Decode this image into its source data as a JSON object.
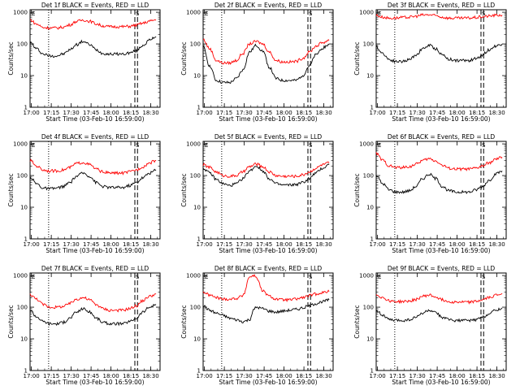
{
  "shared": {
    "ylabel": "Counts/sec",
    "xlabel": "Start Time (03-Feb-10 16:59:00)",
    "x_ticks": [
      "17:00",
      "17:15",
      "17:30",
      "17:45",
      "18:00",
      "18:15",
      "18:30"
    ],
    "y_ticks": [
      "1",
      "10",
      "100",
      "1000"
    ],
    "y_scale": "log",
    "ylim": [
      1,
      1200
    ],
    "marker_E": "E",
    "marker_S": "S",
    "colors": {
      "events": "#000000",
      "lld": "#ff0000"
    }
  },
  "chart_data": [
    {
      "type": "line",
      "title": "Det 1f BLACK = Events, RED = LLD",
      "x": [
        0,
        5,
        10,
        15,
        20,
        25,
        30,
        35,
        40,
        45,
        50,
        55,
        60,
        65,
        70,
        75,
        80,
        85,
        90,
        95
      ],
      "series": [
        {
          "color": "#000000",
          "values": [
            110,
            70,
            48,
            42,
            42,
            48,
            65,
            95,
            120,
            95,
            65,
            50,
            48,
            48,
            48,
            52,
            60,
            90,
            130,
            170
          ]
        },
        {
          "color": "#ff0000",
          "values": [
            580,
            420,
            330,
            320,
            320,
            340,
            400,
            510,
            570,
            520,
            430,
            370,
            350,
            350,
            350,
            360,
            390,
            450,
            520,
            580
          ]
        }
      ]
    },
    {
      "type": "line",
      "title": "Det 2f BLACK = Events, RED = LLD",
      "x": [
        0,
        5,
        10,
        15,
        20,
        25,
        30,
        35,
        40,
        45,
        50,
        55,
        60,
        65,
        70,
        75,
        80,
        85,
        90,
        95
      ],
      "series": [
        {
          "color": "#000000",
          "values": [
            80,
            20,
            7,
            6,
            6,
            8,
            15,
            55,
            90,
            60,
            18,
            8,
            7,
            7,
            7,
            10,
            20,
            45,
            75,
            95
          ]
        },
        {
          "color": "#ff0000",
          "values": [
            140,
            70,
            30,
            25,
            25,
            30,
            50,
            100,
            120,
            100,
            55,
            30,
            27,
            27,
            28,
            35,
            55,
            85,
            110,
            130
          ]
        }
      ]
    },
    {
      "type": "line",
      "title": "Det 3f BLACK = Events, RED = LLD",
      "x": [
        0,
        5,
        10,
        15,
        20,
        25,
        30,
        35,
        40,
        45,
        50,
        55,
        60,
        65,
        70,
        75,
        80,
        85,
        90,
        95
      ],
      "series": [
        {
          "color": "#000000",
          "values": [
            80,
            50,
            32,
            28,
            28,
            32,
            45,
            70,
            90,
            70,
            45,
            33,
            30,
            30,
            30,
            34,
            45,
            65,
            85,
            100
          ]
        },
        {
          "color": "#ff0000",
          "values": [
            800,
            700,
            650,
            660,
            680,
            700,
            750,
            820,
            830,
            780,
            700,
            650,
            650,
            650,
            660,
            680,
            720,
            760,
            800,
            820
          ]
        }
      ]
    },
    {
      "type": "line",
      "title": "Det 4f BLACK = Events, RED = LLD",
      "x": [
        0,
        5,
        10,
        15,
        20,
        25,
        30,
        35,
        40,
        45,
        50,
        55,
        60,
        65,
        70,
        75,
        80,
        85,
        90,
        95
      ],
      "series": [
        {
          "color": "#000000",
          "values": [
            90,
            55,
            40,
            38,
            40,
            45,
            60,
            95,
            120,
            95,
            60,
            45,
            42,
            42,
            42,
            48,
            60,
            85,
            120,
            150
          ]
        },
        {
          "color": "#ff0000",
          "values": [
            300,
            200,
            150,
            140,
            140,
            150,
            180,
            240,
            260,
            220,
            160,
            130,
            120,
            120,
            120,
            130,
            150,
            190,
            250,
            300
          ]
        }
      ]
    },
    {
      "type": "line",
      "title": "Det 5f BLACK = Events, RED = LLD",
      "x": [
        0,
        5,
        10,
        15,
        20,
        25,
        30,
        35,
        40,
        45,
        50,
        55,
        60,
        65,
        70,
        75,
        80,
        85,
        90,
        95
      ],
      "series": [
        {
          "color": "#000000",
          "values": [
            170,
            120,
            75,
            55,
            48,
            55,
            80,
            140,
            200,
            140,
            80,
            55,
            50,
            50,
            52,
            60,
            80,
            120,
            170,
            220
          ]
        },
        {
          "color": "#ff0000",
          "values": [
            220,
            180,
            130,
            100,
            95,
            100,
            130,
            190,
            230,
            190,
            130,
            100,
            95,
            95,
            95,
            105,
            130,
            170,
            220,
            250
          ]
        }
      ]
    },
    {
      "type": "line",
      "title": "Det 6f BLACK = Events, RED = LLD",
      "x": [
        0,
        5,
        10,
        15,
        20,
        25,
        30,
        35,
        40,
        45,
        50,
        55,
        60,
        65,
        70,
        75,
        80,
        85,
        90,
        95
      ],
      "series": [
        {
          "color": "#000000",
          "values": [
            100,
            55,
            35,
            30,
            30,
            33,
            45,
            80,
            110,
            80,
            45,
            33,
            30,
            30,
            30,
            35,
            45,
            70,
            110,
            140
          ]
        },
        {
          "color": "#ff0000",
          "values": [
            500,
            300,
            200,
            180,
            180,
            190,
            230,
            300,
            340,
            290,
            210,
            170,
            160,
            160,
            160,
            170,
            200,
            250,
            320,
            380
          ]
        }
      ]
    },
    {
      "type": "line",
      "title": "Det 7f BLACK = Events, RED = LLD",
      "x": [
        0,
        5,
        10,
        15,
        20,
        25,
        30,
        35,
        40,
        45,
        50,
        55,
        60,
        65,
        70,
        75,
        80,
        85,
        90,
        95
      ],
      "series": [
        {
          "color": "#000000",
          "values": [
            80,
            50,
            35,
            30,
            30,
            33,
            45,
            70,
            90,
            70,
            45,
            33,
            30,
            30,
            30,
            35,
            45,
            70,
            100,
            120
          ]
        },
        {
          "color": "#ff0000",
          "values": [
            250,
            180,
            120,
            100,
            100,
            105,
            130,
            180,
            200,
            170,
            120,
            90,
            80,
            80,
            80,
            90,
            110,
            160,
            220,
            260
          ]
        }
      ]
    },
    {
      "type": "line",
      "title": "Det 8f BLACK = Events, RED = LLD",
      "x": [
        0,
        5,
        10,
        15,
        20,
        25,
        30,
        35,
        38,
        40,
        45,
        50,
        55,
        60,
        65,
        70,
        75,
        80,
        85,
        90,
        95
      ],
      "series": [
        {
          "color": "#000000",
          "values": [
            110,
            80,
            65,
            55,
            45,
            40,
            35,
            40,
            80,
            100,
            90,
            75,
            70,
            75,
            80,
            85,
            95,
            110,
            130,
            150,
            170
          ]
        },
        {
          "color": "#ff0000",
          "values": [
            300,
            240,
            200,
            180,
            180,
            190,
            230,
            900,
            1000,
            900,
            320,
            220,
            180,
            170,
            170,
            180,
            200,
            230,
            260,
            290,
            310
          ]
        }
      ]
    },
    {
      "type": "line",
      "title": "Det 9f BLACK = Events, RED = LLD",
      "x": [
        0,
        5,
        10,
        15,
        20,
        25,
        30,
        35,
        40,
        45,
        50,
        55,
        60,
        65,
        70,
        75,
        80,
        85,
        90,
        95
      ],
      "series": [
        {
          "color": "#000000",
          "values": [
            80,
            55,
            40,
            38,
            38,
            40,
            48,
            65,
            80,
            65,
            48,
            40,
            38,
            38,
            38,
            40,
            48,
            62,
            80,
            95
          ]
        },
        {
          "color": "#ff0000",
          "values": [
            250,
            200,
            160,
            150,
            150,
            155,
            175,
            220,
            240,
            210,
            170,
            150,
            145,
            145,
            145,
            150,
            170,
            200,
            240,
            270
          ]
        }
      ]
    }
  ]
}
